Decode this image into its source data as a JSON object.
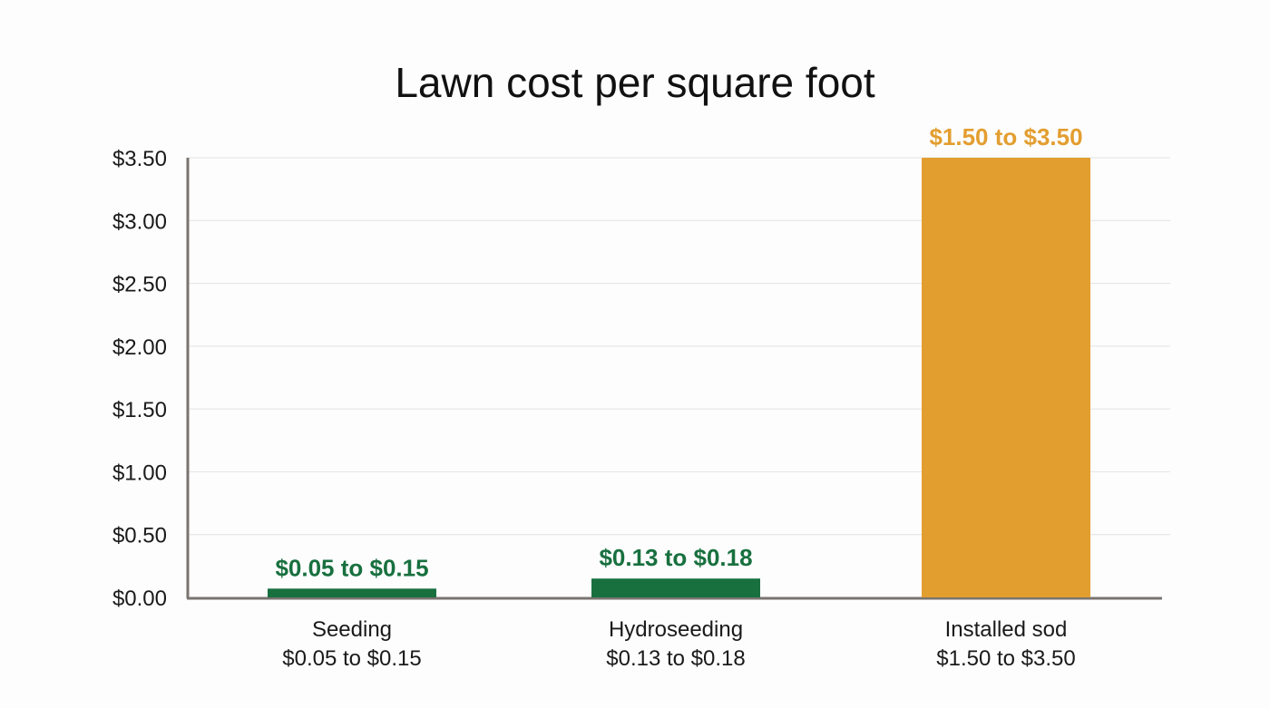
{
  "chart_data": {
    "type": "bar",
    "title": "Lawn cost per square foot",
    "xlabel": "",
    "ylabel": "",
    "ylim": [
      0,
      3.5
    ],
    "yticks": [
      "$0.00",
      "$0.50",
      "$1.00",
      "$1.50",
      "$2.00",
      "$2.50",
      "$3.00",
      "$3.50"
    ],
    "ytick_values": [
      0,
      0.5,
      1.0,
      1.5,
      2.0,
      2.5,
      3.0,
      3.5
    ],
    "grid": true,
    "categories": [
      "Seeding",
      "Hydroseeding",
      "Installed sod"
    ],
    "category_sublabels": [
      "$0.05 to $0.15",
      "$0.13 to $0.18",
      "$1.50 to $3.50"
    ],
    "values": [
      0.07,
      0.15,
      3.5
    ],
    "data_labels": [
      "$0.05 to $0.15",
      "$0.13 to $0.18",
      "$1.50 to $3.50"
    ],
    "colors": [
      "#18703f",
      "#18703f",
      "#e39e30"
    ]
  }
}
